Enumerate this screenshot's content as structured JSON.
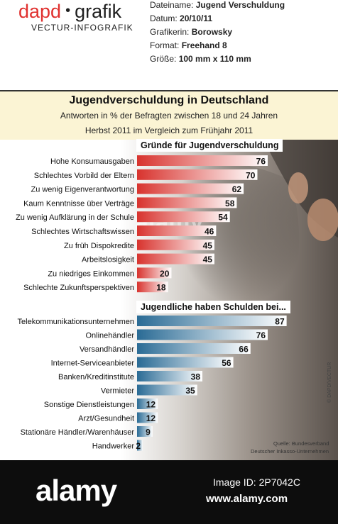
{
  "brand": {
    "name_left": "dapd",
    "name_right": "grafik",
    "subtitle": "VECTUR-INFOGRAFIK"
  },
  "meta": [
    {
      "label": "Dateiname:",
      "value": "Jugend Verschuldung"
    },
    {
      "label": "Datum:",
      "value": "20/10/11"
    },
    {
      "label": "Grafikerin:",
      "value": "Borowsky"
    },
    {
      "label": "Format:",
      "value": "Freehand 8"
    },
    {
      "label": "Größe:",
      "value": "100 mm x 110 mm"
    }
  ],
  "colors": {
    "red": "#d8332e",
    "blue": "#2a6b95",
    "header_bg": "#fbf4d4"
  },
  "chart_data": [
    {
      "type": "bar",
      "title": "Jugendverschuldung in Deutschland",
      "subtitle": "Antworten in % der Befragten zwischen 18 und  24 Jahren",
      "subtitle2": "Herbst 2011 im Vergleich zum Frühjahr 2011",
      "section_title": "Gründe für Jugendverschuldung",
      "orientation": "horizontal",
      "color": "#d8332e",
      "categories": [
        "Hohe Konsumausgaben",
        "Schlechtes Vorbild der Eltern",
        "Zu wenig Eigenverantwortung",
        "Kaum Kenntnisse über Verträge",
        "Zu wenig Aufklärung in der Schule",
        "Schlechtes Wirtschaftswissen",
        "Zu früh Dispokredite",
        "Arbeitslosigkeit",
        "Zu niedriges Einkommen",
        "Schlechte Zukunftsperspektiven"
      ],
      "values": [
        76,
        70,
        62,
        58,
        54,
        46,
        45,
        45,
        20,
        18
      ]
    },
    {
      "type": "bar",
      "section_title": "Jugendliche haben Schulden bei...",
      "orientation": "horizontal",
      "color": "#2a6b95",
      "categories": [
        "Telekommunikationsunternehmen",
        "Onlinehändler",
        "Versandhändler",
        "Internet-Serviceanbieter",
        "Banken/Kreditinstitute",
        "Vermieter",
        "Sonstige Dienstleistungen",
        "Arzt/Gesundheit",
        "Stationäre Händler/Warenhäuser",
        "Handwerker"
      ],
      "values": [
        87,
        76,
        66,
        56,
        38,
        35,
        12,
        12,
        9,
        2
      ]
    }
  ],
  "source": {
    "line1": "Quelle: Bundesverband",
    "line2": "Deutscher Inkasso-Unternehmen"
  },
  "credit": "© DAPD/VECTUR",
  "watermark": "alamy",
  "footer": {
    "logo": "alamy",
    "image_id": "Image ID: 2P7042C",
    "url": "www.alamy.com"
  }
}
